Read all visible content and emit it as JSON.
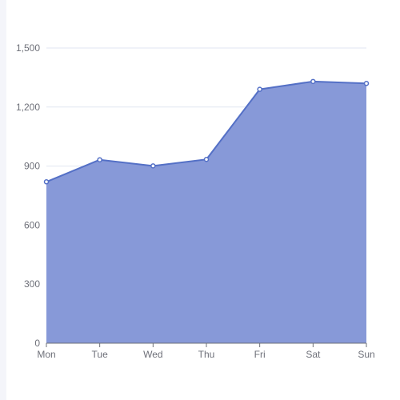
{
  "chart_data": {
    "type": "area",
    "categories": [
      "Mon",
      "Tue",
      "Wed",
      "Thu",
      "Fri",
      "Sat",
      "Sun"
    ],
    "series": [
      {
        "values": [
          820,
          932,
          901,
          934,
          1290,
          1330,
          1320
        ]
      }
    ],
    "y_ticks": [
      "0",
      "300",
      "600",
      "900",
      "1,200",
      "1,500"
    ],
    "ylim": [
      0,
      1500
    ],
    "grid": true,
    "colors": {
      "area": "#8799d8",
      "line": "#5470c6",
      "grid": "#e0e6f1",
      "axis": "#6e7079",
      "point_fill": "#ffffff"
    }
  }
}
